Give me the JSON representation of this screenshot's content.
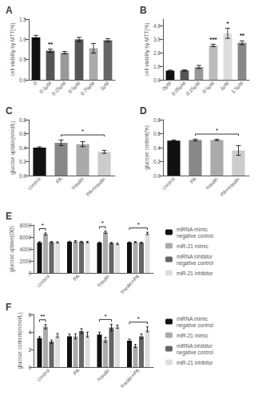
{
  "chart_data": [
    {
      "type": "bar",
      "title": "A",
      "categories": [
        "0",
        "0.1μM",
        "0.25μM",
        "0.5μM",
        "0.75μM",
        "1μM"
      ],
      "values": [
        1.05,
        0.72,
        0.67,
        1.0,
        0.78,
        0.98
      ],
      "errors": [
        0.05,
        0.04,
        0.03,
        0.05,
        0.12,
        0.04
      ],
      "colors": [
        "#111111",
        "#555555",
        "#999999",
        "#555555",
        "#aaaaaa",
        "#666666"
      ],
      "ylabel": "cell viability by MTT(%)",
      "ylim": [
        0,
        1.5
      ],
      "yticks": [
        {
          "value": 0,
          "label": "0.0"
        },
        0.5,
        {
          "value": 1,
          "label": "1.0"
        },
        1.5
      ],
      "grid": false,
      "annotations": [
        {
          "category": "0.1μM",
          "text": "**"
        }
      ]
    },
    {
      "type": "bar",
      "title": "B",
      "categories": [
        "0μM",
        "0.05μM",
        "0.25μM",
        "0.5μM",
        "1μM",
        "1.5μM"
      ],
      "values": [
        0.68,
        0.7,
        0.95,
        2.55,
        3.45,
        2.75
      ],
      "errors": [
        0.04,
        0.05,
        0.12,
        0.09,
        0.38,
        0.14
      ],
      "colors": [
        "#111111",
        "#555555",
        "#999999",
        "#bbbbbb",
        "#dddddd",
        "#888888"
      ],
      "ylabel": "cell viability by MTT(%)",
      "ylim": [
        0,
        4.5
      ],
      "yticks": [
        {
          "value": 0,
          "label": "0.0"
        },
        {
          "value": 1,
          "label": "1.0"
        },
        {
          "value": 2,
          "label": "2.0"
        },
        {
          "value": 3,
          "label": "3.0"
        },
        {
          "value": 4,
          "label": "4.0"
        }
      ],
      "grid": false,
      "annotations": [
        {
          "category": "0.5μM",
          "text": "***"
        },
        {
          "category": "1μM",
          "text": "*"
        },
        {
          "category": "1.5μM",
          "text": "**"
        }
      ]
    },
    {
      "type": "bar",
      "title": "C",
      "categories": [
        "control",
        "PA",
        "Insulin",
        "PA+Insulin"
      ],
      "values": [
        0.4,
        0.47,
        0.45,
        0.34
      ],
      "errors": [
        0.012,
        0.04,
        0.035,
        0.022
      ],
      "colors": [
        "#111111",
        "#888888",
        "#aaaaaa",
        "#cccccc"
      ],
      "ylabel": "glucose uptake(nmol/L)",
      "ylim": [
        0.0,
        0.8
      ],
      "yticks": [
        {
          "value": 0,
          "label": "0.0"
        },
        0.2,
        0.4,
        0.6,
        0.8
      ],
      "grid": false,
      "annotations": [
        {
          "from": "PA",
          "to": "PA+Insulin",
          "text": "*"
        }
      ]
    },
    {
      "type": "bar",
      "title": "D",
      "categories": [
        "control",
        "PA",
        "Insulin",
        "PA+Insulin"
      ],
      "values": [
        0.5,
        0.51,
        0.51,
        0.36
      ],
      "errors": [
        0.01,
        0.012,
        0.01,
        0.07
      ],
      "colors": [
        "#111111",
        "#888888",
        "#aaaaaa",
        "#cccccc"
      ],
      "ylabel": "glucose content(%)",
      "ylim": [
        0.0,
        0.8
      ],
      "yticks": [
        {
          "value": 0,
          "label": "0.0"
        },
        0.2,
        0.4,
        0.6,
        0.8
      ],
      "grid": false,
      "annotations": [
        {
          "from": "PA",
          "to": "PA+Insulin",
          "text": "*"
        }
      ]
    },
    {
      "type": "bar",
      "title": "E",
      "categories": [
        "control",
        "PA",
        "Insulin",
        "Insulin+PA"
      ],
      "series": [
        {
          "name": "miRNA mimic\nnegative control",
          "color": "#111111",
          "values": [
            5100,
            5200,
            5050,
            5100
          ],
          "errors": [
            130,
            100,
            100,
            90
          ]
        },
        {
          "name": "miR-21 mimic",
          "color": "#aaaaaa",
          "values": [
            6500,
            5250,
            6800,
            5150
          ],
          "errors": [
            180,
            140,
            200,
            90
          ]
        },
        {
          "name": "miRNA inhibitor\nnegative control",
          "color": "#666666",
          "values": [
            5150,
            5200,
            5000,
            5050
          ],
          "errors": [
            90,
            90,
            90,
            90
          ]
        },
        {
          "name": "miR-21 inhibitor",
          "color": "#dddddd",
          "values": [
            5100,
            5150,
            4850,
            6600
          ],
          "errors": [
            90,
            120,
            130,
            190
          ]
        }
      ],
      "ylabel": "glucose uptake(OD)",
      "ylim": [
        0,
        8000
      ],
      "yticks": [
        0,
        2000,
        4000,
        6000,
        8000
      ],
      "grid": false,
      "legend": "right",
      "annotations": [
        {
          "category": "control",
          "from": "miRNA mimic\nnegative control",
          "to": "miR-21 mimic",
          "text": "*"
        },
        {
          "category": "Insulin",
          "from": "miRNA mimic\nnegative control",
          "to": "miR-21 mimic",
          "text": "*"
        },
        {
          "category": "Insulin+PA",
          "from": "miRNA mimic\nnegative control",
          "to": "miR-21 inhibitor",
          "text": "*"
        }
      ]
    },
    {
      "type": "bar",
      "title": "F",
      "categories": [
        "control",
        "PA",
        "Insulin",
        "Insulin+PA"
      ],
      "series": [
        {
          "name": "miRNA mimic\nnegative control",
          "color": "#111111",
          "values": [
            3.3,
            3.5,
            3.7,
            3.0
          ],
          "errors": [
            0.18,
            0.25,
            0.28,
            0.18
          ]
        },
        {
          "name": "miR-21 mimic",
          "color": "#aaaaaa",
          "values": [
            4.6,
            3.5,
            3.1,
            2.4
          ],
          "errors": [
            0.25,
            0.28,
            0.28,
            0.18
          ]
        },
        {
          "name": "miRNA inhibitor\nnegative control",
          "color": "#666666",
          "values": [
            2.9,
            4.1,
            4.5,
            3.5
          ],
          "errors": [
            0.18,
            0.28,
            0.38,
            0.28
          ]
        },
        {
          "name": "miR-21 inhibitor",
          "color": "#dddddd",
          "values": [
            3.6,
            3.7,
            4.6,
            4.3
          ],
          "errors": [
            0.22,
            0.28,
            0.18,
            0.28
          ]
        }
      ],
      "ylabel": "glucose content(mmol/L)",
      "ylim": [
        0,
        6
      ],
      "yticks": [
        0,
        2,
        4,
        6
      ],
      "grid": false,
      "legend": "right",
      "annotations": [
        {
          "category": "control",
          "from": "miRNA mimic\nnegative control",
          "to": "miR-21 mimic",
          "text": "**"
        },
        {
          "category": "Insulin",
          "from": "miRNA mimic\nnegative control",
          "to": "miRNA inhibitor\nnegative control",
          "text": "*"
        },
        {
          "category": "Insulin+PA",
          "from": "miRNA mimic\nnegative control",
          "to": "miR-21 inhibitor",
          "text": "*"
        }
      ]
    }
  ]
}
